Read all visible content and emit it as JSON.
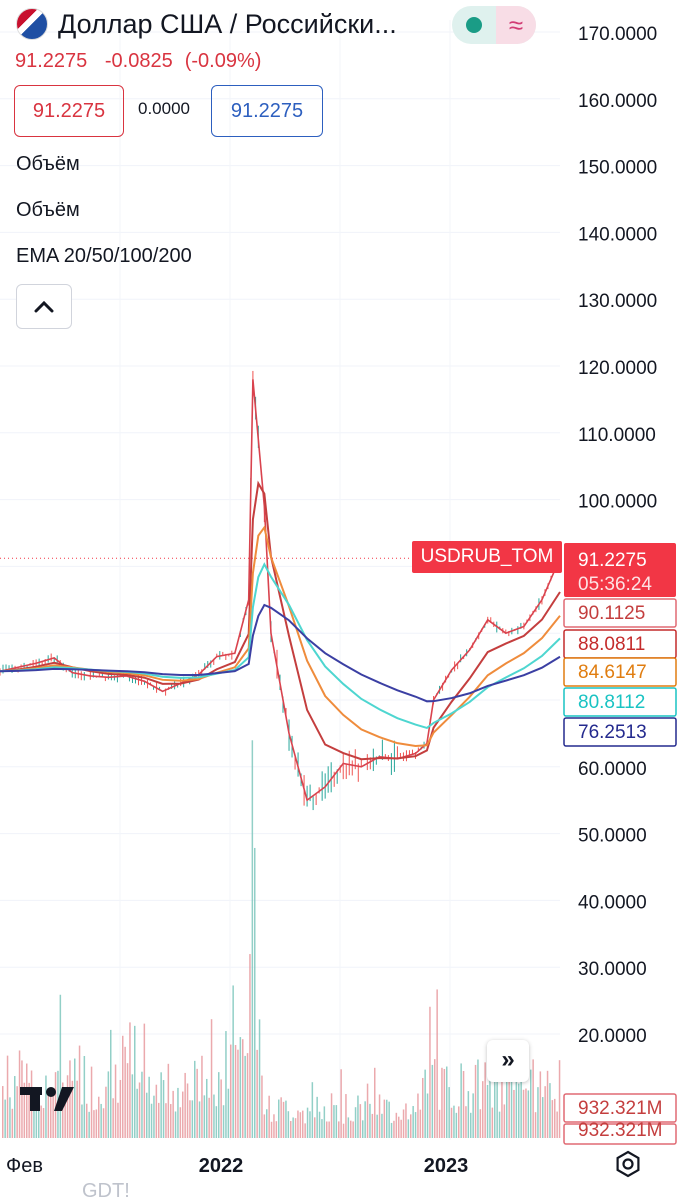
{
  "header": {
    "title": "Доллар США / Российски...",
    "last_price": "91.2275",
    "change_abs": "-0.0825",
    "change_pct": "(-0.09%)",
    "bid": "91.2275",
    "spread": "0.0000",
    "ask": "91.2275",
    "indicators": [
      "Объём",
      "Объём",
      "EMA 20/50/100/200"
    ],
    "colors": {
      "down": "#d93440",
      "up": "#1a9c86",
      "ask": "#2d5fbf",
      "flag_icon": "us-flag-icon",
      "status_icon": "market-status-icon",
      "wave_icon": "wave-icon"
    }
  },
  "chart_data": {
    "type": "line",
    "symbol": "USDRUB_TOM",
    "countdown": "05:36:24",
    "x_tick_labels": [
      "Фев",
      "2022",
      "2023"
    ],
    "y_tick_labels": [
      "170.0000",
      "160.0000",
      "150.0000",
      "140.0000",
      "130.0000",
      "120.0000",
      "110.0000",
      "100.0000",
      "60.0000",
      "50.0000",
      "40.0000",
      "30.0000",
      "20.0000"
    ],
    "ylim": [
      14,
      176
    ],
    "x_range": [
      "2021-01",
      "2023-08"
    ],
    "price_series": {
      "name": "USDRUB_TOM",
      "x": [
        "2021-01",
        "2021-02",
        "2021-03",
        "2021-04",
        "2021-05",
        "2021-06",
        "2021-07",
        "2021-08",
        "2021-09",
        "2021-10",
        "2021-11",
        "2021-12",
        "2022-01",
        "2022-02",
        "2022-02-24",
        "2022-03",
        "2022-03-10",
        "2022-03-20",
        "2022-04",
        "2022-05",
        "2022-06",
        "2022-07",
        "2022-08",
        "2022-09",
        "2022-10",
        "2022-11",
        "2022-12",
        "2022-12-20",
        "2023-01",
        "2023-02",
        "2023-03",
        "2023-04",
        "2023-05",
        "2023-06",
        "2023-07",
        "2023-08"
      ],
      "y": [
        74.3,
        74.9,
        75.5,
        76.3,
        74.1,
        73.6,
        73.4,
        73.6,
        72.8,
        71.3,
        72.5,
        73.8,
        76.5,
        77.0,
        85.0,
        118.0,
        109.0,
        99.0,
        80.0,
        65.0,
        55.0,
        57.0,
        60.5,
        60.0,
        61.5,
        61.2,
        62.0,
        63.5,
        70.0,
        74.5,
        77.5,
        82.0,
        80.0,
        81.0,
        85.0,
        91.2275
      ]
    },
    "ema_series": [
      {
        "name": "EMA 20",
        "color": "#c43e3e",
        "last": "88.0811",
        "box_color": "#c42b2b"
      },
      {
        "name": "EMA 50",
        "color": "#ef8c3c",
        "last": "84.6147",
        "box_color": "#e07d10"
      },
      {
        "name": "EMA 100",
        "color": "#4ed6d0",
        "last": "80.8112",
        "box_color": "#19c3c3"
      },
      {
        "name": "EMA 200",
        "color": "#3b3fa3",
        "last": "76.2513",
        "box_color": "#242a8e"
      }
    ],
    "price_labels": [
      {
        "value": "91.2275",
        "kind": "last"
      },
      {
        "value": "90.1125",
        "kind": "high"
      }
    ],
    "volume": {
      "last": "932.321M",
      "last2": "932.321M",
      "peak_label": "40.0000"
    },
    "watermark": "GDT!"
  }
}
